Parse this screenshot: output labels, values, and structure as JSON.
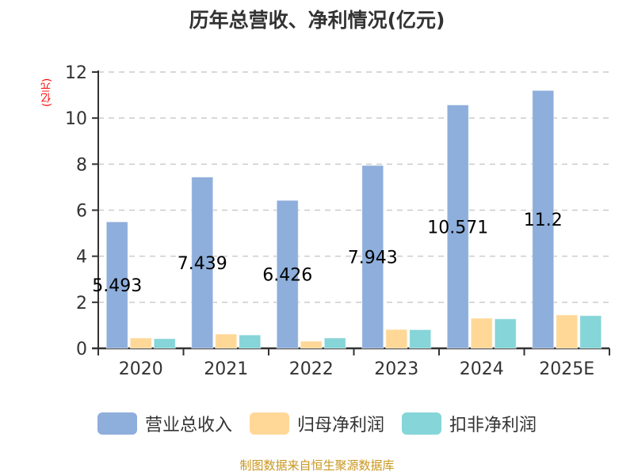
{
  "title": "历年总营收、净利情况(亿元)",
  "unit_label": "(亿元)",
  "source": "制图数据来自恒生聚源数据库",
  "colors": {
    "revenue": "#8eaedb",
    "net_profit": "#ffd898",
    "deducted_net_profit": "#86d5d8",
    "axis": "#333333",
    "grid": "#cccccc",
    "unit": "#ff0000",
    "source": "#c8961e"
  },
  "legend": [
    {
      "label": "营业总收入",
      "color": "#8eaedb"
    },
    {
      "label": "归母净利润",
      "color": "#ffd898"
    },
    {
      "label": "扣非净利润",
      "color": "#86d5d8"
    }
  ],
  "chart_data": {
    "type": "bar",
    "title": "历年总营收、净利情况(亿元)",
    "xlabel": "",
    "ylabel": "(亿元)",
    "ylim": [
      0,
      12
    ],
    "yticks": [
      0,
      2,
      4,
      6,
      8,
      10,
      12
    ],
    "grid": true,
    "legend_position": "bottom",
    "categories": [
      "2020",
      "2021",
      "2022",
      "2023",
      "2024",
      "2025E"
    ],
    "series": [
      {
        "name": "营业总收入",
        "values": [
          5.493,
          7.439,
          6.426,
          7.943,
          10.571,
          11.2
        ],
        "labels": [
          "5.493",
          "7.439",
          "6.426",
          "7.943",
          "10.571",
          "11.2"
        ]
      },
      {
        "name": "归母净利润",
        "values": [
          0.45,
          0.62,
          0.31,
          0.82,
          1.31,
          1.45
        ]
      },
      {
        "name": "扣非净利润",
        "values": [
          0.42,
          0.58,
          0.45,
          0.81,
          1.28,
          1.42
        ]
      }
    ],
    "annotations": "Data labels shown only for 营业总收入, drawn at mid-height of bars"
  }
}
